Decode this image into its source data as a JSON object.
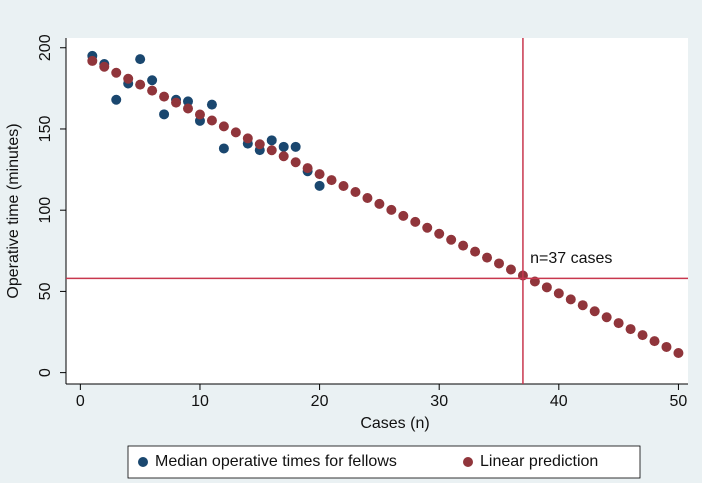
{
  "chart_data": {
    "type": "scatter",
    "xlabel": "Cases (n)",
    "ylabel": "Operative time (minutes)",
    "xlim": [
      -1.2,
      50.8
    ],
    "ylim": [
      -7,
      206
    ],
    "xticks": [
      0,
      10,
      20,
      30,
      40,
      50
    ],
    "yticks": [
      0,
      50,
      100,
      150,
      200
    ],
    "xline": 37,
    "yline": 58,
    "refline_color": "#c8374e",
    "annotation": {
      "text": "n=37 cases",
      "x": 37.6,
      "y": 70
    },
    "legend": "bottom",
    "series": [
      {
        "name": "Median operative times for fellows",
        "color": "#1a476f",
        "x": [
          1,
          2,
          3,
          4,
          5,
          6,
          7,
          8,
          9,
          10,
          11,
          12,
          14,
          15,
          16,
          17,
          18,
          19,
          20
        ],
        "values": [
          195,
          190,
          168,
          178,
          193,
          180,
          159,
          168,
          167,
          155,
          165,
          138,
          141,
          137,
          143,
          139,
          139,
          124,
          115
        ]
      },
      {
        "name": "Linear prediction",
        "color": "#90353b",
        "x": [
          1,
          2,
          3,
          4,
          5,
          6,
          7,
          8,
          9,
          10,
          11,
          12,
          13,
          14,
          15,
          16,
          17,
          18,
          19,
          20,
          21,
          22,
          23,
          24,
          25,
          26,
          27,
          28,
          29,
          30,
          31,
          32,
          33,
          34,
          35,
          36,
          37,
          38,
          39,
          40,
          41,
          42,
          43,
          44,
          45,
          46,
          47,
          48,
          49,
          50
        ],
        "values": [
          191.9,
          188.3,
          184.6,
          180.9,
          177.3,
          173.6,
          169.9,
          166.2,
          162.6,
          158.9,
          155.2,
          151.6,
          147.9,
          144.2,
          140.6,
          136.9,
          133.2,
          129.5,
          125.9,
          122.2,
          118.5,
          114.9,
          111.2,
          107.5,
          103.9,
          100.2,
          96.5,
          92.8,
          89.2,
          85.5,
          81.8,
          78.2,
          74.5,
          70.8,
          67.2,
          63.5,
          59.8,
          56.1,
          52.5,
          48.8,
          45.1,
          41.5,
          37.8,
          34.1,
          30.5,
          26.8,
          23.1,
          19.4,
          15.8,
          12.1
        ]
      }
    ]
  }
}
